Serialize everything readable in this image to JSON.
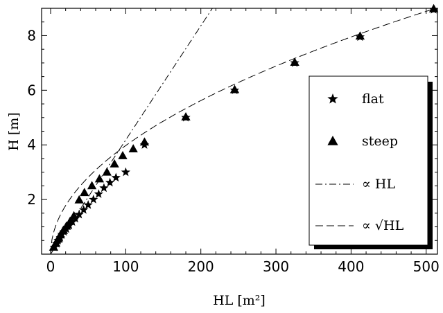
{
  "chart_data": {
    "type": "scatter",
    "xlabel": "HL [m²]",
    "ylabel": "H [m]",
    "xlim": [
      -12,
      515
    ],
    "ylim": [
      0,
      9.0
    ],
    "x_ticks": [
      0,
      100,
      200,
      300,
      400,
      500
    ],
    "x_tick_labels": [
      "0",
      "100",
      "200",
      "300",
      "400",
      "500"
    ],
    "y_ticks": [
      2,
      4,
      6,
      8
    ],
    "y_tick_labels": [
      "2",
      "4",
      "6",
      "8"
    ],
    "grid": false,
    "legend_position": "right",
    "series": [
      {
        "name": "flat",
        "marker": "star",
        "points": [
          [
            5,
            0.25
          ],
          [
            8,
            0.38
          ],
          [
            10,
            0.5
          ],
          [
            13,
            0.6
          ],
          [
            15,
            0.72
          ],
          [
            18,
            0.82
          ],
          [
            21,
            0.92
          ],
          [
            25,
            1.05
          ],
          [
            29,
            1.18
          ],
          [
            33,
            1.3
          ],
          [
            38,
            1.45
          ],
          [
            44,
            1.62
          ],
          [
            50,
            1.8
          ],
          [
            57,
            2.0
          ],
          [
            64,
            2.2
          ],
          [
            71,
            2.42
          ],
          [
            79,
            2.62
          ],
          [
            87,
            2.8
          ],
          [
            100,
            3.0
          ],
          [
            125,
            4.0
          ],
          [
            180,
            5.0
          ],
          [
            245,
            6.0
          ],
          [
            325,
            7.0
          ],
          [
            412,
            7.95
          ],
          [
            510,
            8.95
          ]
        ]
      },
      {
        "name": "steep",
        "marker": "triangle",
        "points": [
          [
            4,
            0.25
          ],
          [
            7,
            0.4
          ],
          [
            10,
            0.55
          ],
          [
            13,
            0.7
          ],
          [
            17,
            0.87
          ],
          [
            21,
            1.02
          ],
          [
            26,
            1.2
          ],
          [
            31,
            1.4
          ],
          [
            38,
            1.98
          ],
          [
            45,
            2.25
          ],
          [
            55,
            2.5
          ],
          [
            65,
            2.75
          ],
          [
            75,
            3.0
          ],
          [
            85,
            3.3
          ],
          [
            96,
            3.6
          ],
          [
            110,
            3.85
          ],
          [
            125,
            4.1
          ],
          [
            180,
            5.02
          ],
          [
            245,
            6.02
          ],
          [
            325,
            7.02
          ],
          [
            412,
            7.98
          ],
          [
            510,
            8.98
          ]
        ]
      }
    ],
    "curves": [
      {
        "name": "∝ HL",
        "dash": "dash-dot",
        "form": "linear",
        "coef": 0.0418,
        "x_range": [
          0,
          230
        ]
      },
      {
        "name": "∝ √HL",
        "dash": "dashed",
        "form": "sqrt",
        "coef": 0.3975,
        "x_range": [
          0,
          515
        ]
      }
    ],
    "legend": [
      {
        "label": "flat",
        "symbol": "star"
      },
      {
        "label": "steep",
        "symbol": "triangle"
      },
      {
        "label": "∝ HL",
        "symbol": "dash-dot"
      },
      {
        "label": "∝ √HL",
        "symbol": "dashed"
      }
    ]
  }
}
